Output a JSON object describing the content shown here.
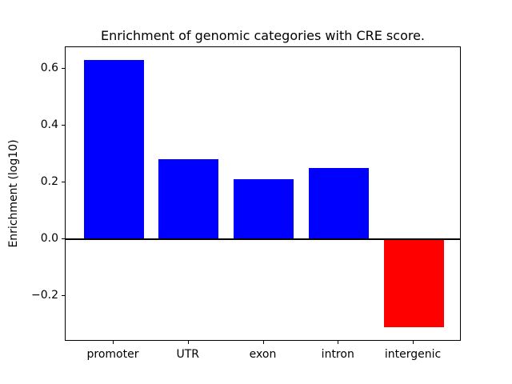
{
  "chart_data": {
    "type": "bar",
    "title": "Enrichment of genomic categories with CRE score.",
    "xlabel": "",
    "ylabel": "Enrichment (log10)",
    "categories": [
      "promoter",
      "UTR",
      "exon",
      "intron",
      "intergenic"
    ],
    "values": [
      0.63,
      0.28,
      0.21,
      0.25,
      -0.31
    ],
    "bar_colors": [
      "#0000ff",
      "#0000ff",
      "#0000ff",
      "#0000ff",
      "#ff0000"
    ],
    "positive_color": "#0000ff",
    "negative_color": "#ff0000",
    "yticks": [
      {
        "value": 0.6,
        "label": "0.6"
      },
      {
        "value": 0.4,
        "label": "0.4"
      },
      {
        "value": 0.2,
        "label": "0.2"
      },
      {
        "value": 0.0,
        "label": "0.0"
      },
      {
        "value": -0.2,
        "label": "−0.2"
      }
    ],
    "ylim": [
      -0.36,
      0.675
    ],
    "xlim": [
      -0.64,
      4.64
    ],
    "bar_width": 0.8,
    "zero_line": true,
    "grid": false,
    "legend": false,
    "axis_color": "#000000",
    "background_color": "#ffffff"
  }
}
